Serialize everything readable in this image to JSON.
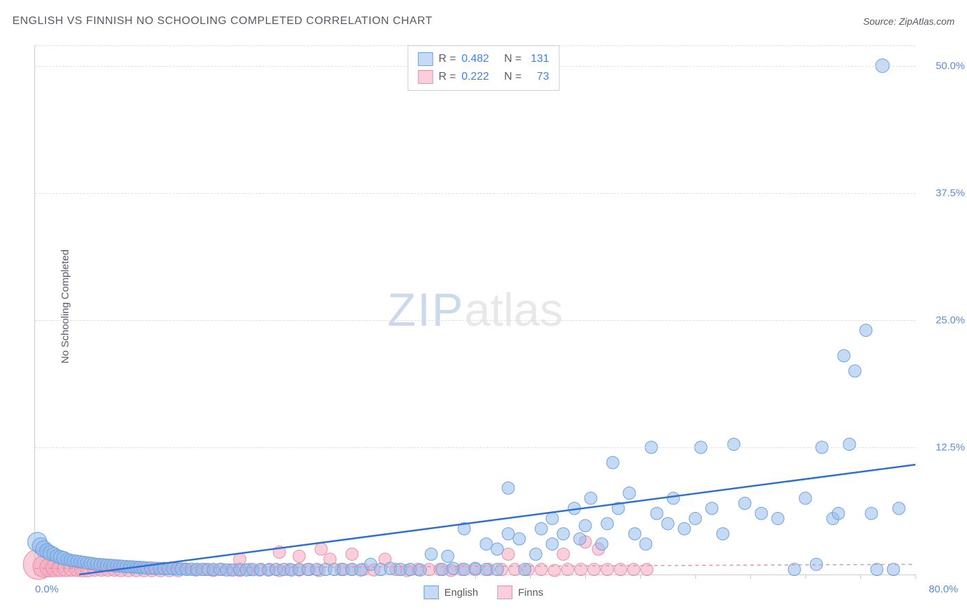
{
  "header": {
    "title": "ENGLISH VS FINNISH NO SCHOOLING COMPLETED CORRELATION CHART",
    "source_prefix": "Source: ",
    "source_name": "ZipAtlas.com"
  },
  "axes": {
    "y_label": "No Schooling Completed",
    "x_min_label": "0.0%",
    "x_max_label": "80.0%",
    "x_min": 0,
    "x_max": 80,
    "y_min": 0,
    "y_max": 52,
    "y_ticks": [
      {
        "v": 12.5,
        "label": "12.5%"
      },
      {
        "v": 25.0,
        "label": "25.0%"
      },
      {
        "v": 37.5,
        "label": "37.5%"
      },
      {
        "v": 50.0,
        "label": "50.0%"
      }
    ],
    "x_tick_step": 5,
    "grid_color": "#dcdfe4",
    "axis_color": "#c9ccd1"
  },
  "watermark": {
    "part1": "ZIP",
    "part2": "atlas"
  },
  "series": {
    "english": {
      "label": "English",
      "fill": "rgba(147,187,237,0.55)",
      "stroke": "#6ea0dd",
      "line_color": "#2f6fd0",
      "line_width": 2.5,
      "r_base": 9,
      "trend": {
        "x1": 4,
        "y1": 0,
        "x2": 80,
        "y2": 10.8
      }
    },
    "finns": {
      "label": "Finns",
      "fill": "rgba(244,168,189,0.55)",
      "stroke": "#e890a9",
      "line_color": "#e890a9",
      "line_width": 1.5,
      "line_dash": "5,5",
      "r_base": 9,
      "trend": {
        "x1": 0,
        "y1": 0.6,
        "x2": 80,
        "y2": 1.0
      }
    }
  },
  "stats_legend": {
    "rows": [
      {
        "swatch_fill": "rgba(147,187,237,0.55)",
        "swatch_stroke": "#6ea0dd",
        "r_label": "R =",
        "r_val": "0.482",
        "n_label": "N =",
        "n_val": "131"
      },
      {
        "swatch_fill": "rgba(244,168,189,0.55)",
        "swatch_stroke": "#e890a9",
        "r_label": "R =",
        "r_val": "0.222",
        "n_label": "N =",
        "n_val": "73"
      }
    ]
  },
  "points": {
    "english": [
      [
        0.2,
        3.2,
        14
      ],
      [
        0.5,
        2.8,
        12
      ],
      [
        0.8,
        2.5,
        12
      ],
      [
        1.1,
        2.3,
        11
      ],
      [
        1.4,
        2.1,
        11
      ],
      [
        1.7,
        2.0,
        10
      ],
      [
        2.0,
        1.8,
        10
      ],
      [
        2.3,
        1.7,
        10
      ],
      [
        2.6,
        1.6,
        10
      ],
      [
        2.9,
        1.5,
        9
      ],
      [
        3.2,
        1.4,
        9
      ],
      [
        3.5,
        1.35,
        9
      ],
      [
        3.8,
        1.3,
        9
      ],
      [
        4.1,
        1.25,
        9
      ],
      [
        4.4,
        1.2,
        9
      ],
      [
        4.7,
        1.15,
        9
      ],
      [
        5.0,
        1.1,
        9
      ],
      [
        5.3,
        1.05,
        9
      ],
      [
        5.6,
        1.0,
        9
      ],
      [
        5.9,
        0.98,
        9
      ],
      [
        6.2,
        0.95,
        9
      ],
      [
        6.5,
        0.92,
        9
      ],
      [
        6.8,
        0.9,
        9
      ],
      [
        7.1,
        0.88,
        9
      ],
      [
        7.4,
        0.85,
        9
      ],
      [
        7.7,
        0.83,
        9
      ],
      [
        8.0,
        0.8,
        9
      ],
      [
        8.3,
        0.78,
        9
      ],
      [
        8.6,
        0.76,
        9
      ],
      [
        8.9,
        0.74,
        9
      ],
      [
        9.2,
        0.72,
        9
      ],
      [
        9.5,
        0.7,
        9
      ],
      [
        9.8,
        0.68,
        9
      ],
      [
        10.1,
        0.66,
        9
      ],
      [
        10.5,
        0.64,
        9
      ],
      [
        10.9,
        0.62,
        9
      ],
      [
        11.3,
        0.6,
        9
      ],
      [
        11.7,
        0.6,
        9
      ],
      [
        12.1,
        0.58,
        9
      ],
      [
        12.5,
        0.58,
        9
      ],
      [
        12.9,
        0.55,
        9
      ],
      [
        13.3,
        0.55,
        9
      ],
      [
        13.7,
        0.52,
        9
      ],
      [
        14.2,
        0.52,
        9
      ],
      [
        14.7,
        0.5,
        9
      ],
      [
        15.2,
        0.5,
        9
      ],
      [
        15.7,
        0.5,
        9
      ],
      [
        16.2,
        0.5,
        9
      ],
      [
        16.8,
        0.5,
        9
      ],
      [
        17.4,
        0.45,
        9
      ],
      [
        18.0,
        0.45,
        9
      ],
      [
        18.6,
        0.5,
        9
      ],
      [
        19.2,
        0.45,
        9
      ],
      [
        19.8,
        0.48,
        9
      ],
      [
        20.5,
        0.5,
        9
      ],
      [
        21.2,
        0.45,
        9
      ],
      [
        21.9,
        0.5,
        9
      ],
      [
        22.6,
        0.5,
        9
      ],
      [
        23.3,
        0.45,
        9
      ],
      [
        24.0,
        0.5,
        9
      ],
      [
        24.8,
        0.5,
        9
      ],
      [
        25.6,
        0.5,
        9
      ],
      [
        26.4,
        0.5,
        9
      ],
      [
        27.2,
        0.5,
        9
      ],
      [
        28.0,
        0.5,
        9
      ],
      [
        28.8,
        0.5,
        9
      ],
      [
        29.6,
        0.45,
        9
      ],
      [
        30.5,
        1.0,
        9
      ],
      [
        31.4,
        0.5,
        9
      ],
      [
        32.3,
        0.6,
        9
      ],
      [
        33.2,
        0.5,
        9
      ],
      [
        34.1,
        0.5,
        9
      ],
      [
        35.0,
        0.45,
        9
      ],
      [
        36.0,
        2.0,
        9
      ],
      [
        37.0,
        0.5,
        9
      ],
      [
        37.5,
        1.8,
        9
      ],
      [
        38.0,
        0.6,
        9
      ],
      [
        39.0,
        4.5,
        9
      ],
      [
        39.0,
        0.5,
        9
      ],
      [
        40.0,
        0.6,
        9
      ],
      [
        41.0,
        3.0,
        9
      ],
      [
        41.0,
        0.5,
        9
      ],
      [
        42.0,
        2.5,
        9
      ],
      [
        42.0,
        0.5,
        9
      ],
      [
        43.0,
        8.5,
        9
      ],
      [
        43.0,
        4.0,
        9
      ],
      [
        44.0,
        3.5,
        9
      ],
      [
        44.5,
        0.5,
        9
      ],
      [
        45.5,
        2.0,
        9
      ],
      [
        46.0,
        4.5,
        9
      ],
      [
        47.0,
        3.0,
        9
      ],
      [
        47.0,
        5.5,
        9
      ],
      [
        48.0,
        4.0,
        9
      ],
      [
        49.0,
        6.5,
        9
      ],
      [
        49.5,
        3.5,
        9
      ],
      [
        50.0,
        4.8,
        9
      ],
      [
        50.5,
        7.5,
        9
      ],
      [
        51.5,
        3.0,
        9
      ],
      [
        52.0,
        5.0,
        9
      ],
      [
        52.5,
        11.0,
        9
      ],
      [
        53.0,
        6.5,
        9
      ],
      [
        54.0,
        8.0,
        9
      ],
      [
        54.5,
        4.0,
        9
      ],
      [
        55.5,
        3.0,
        9
      ],
      [
        56.0,
        12.5,
        9
      ],
      [
        56.5,
        6.0,
        9
      ],
      [
        57.5,
        5.0,
        9
      ],
      [
        58.0,
        7.5,
        9
      ],
      [
        59.0,
        4.5,
        9
      ],
      [
        60.0,
        5.5,
        9
      ],
      [
        60.5,
        12.5,
        9
      ],
      [
        61.5,
        6.5,
        9
      ],
      [
        62.5,
        4.0,
        9
      ],
      [
        63.5,
        12.8,
        9
      ],
      [
        64.5,
        7.0,
        9
      ],
      [
        66.0,
        6.0,
        9
      ],
      [
        67.5,
        5.5,
        9
      ],
      [
        69.0,
        0.5,
        9
      ],
      [
        70.0,
        7.5,
        9
      ],
      [
        71.0,
        1.0,
        9
      ],
      [
        71.5,
        12.5,
        9
      ],
      [
        72.5,
        5.5,
        9
      ],
      [
        73.0,
        6.0,
        9
      ],
      [
        73.5,
        21.5,
        9
      ],
      [
        74.0,
        12.8,
        9
      ],
      [
        74.5,
        20.0,
        9
      ],
      [
        75.5,
        24.0,
        9
      ],
      [
        76.0,
        6.0,
        9
      ],
      [
        76.5,
        0.5,
        9
      ],
      [
        77.0,
        50.0,
        10
      ],
      [
        78.0,
        0.5,
        9
      ],
      [
        78.5,
        6.5,
        9
      ]
    ],
    "finns": [
      [
        0.3,
        1.0,
        22
      ],
      [
        0.8,
        0.8,
        16
      ],
      [
        1.3,
        0.7,
        14
      ],
      [
        1.8,
        0.65,
        13
      ],
      [
        2.3,
        0.6,
        12
      ],
      [
        2.8,
        0.6,
        12
      ],
      [
        3.3,
        0.55,
        11
      ],
      [
        3.8,
        0.55,
        11
      ],
      [
        4.3,
        0.5,
        11
      ],
      [
        4.8,
        0.5,
        11
      ],
      [
        5.4,
        0.5,
        10
      ],
      [
        6.0,
        0.5,
        10
      ],
      [
        6.6,
        0.5,
        10
      ],
      [
        7.2,
        0.5,
        10
      ],
      [
        7.8,
        0.45,
        10
      ],
      [
        8.5,
        0.45,
        10
      ],
      [
        9.2,
        0.45,
        10
      ],
      [
        9.9,
        0.45,
        10
      ],
      [
        10.6,
        0.45,
        10
      ],
      [
        11.4,
        0.45,
        10
      ],
      [
        12.2,
        0.45,
        10
      ],
      [
        13.0,
        0.45,
        10
      ],
      [
        13.8,
        0.5,
        9
      ],
      [
        14.6,
        0.45,
        9
      ],
      [
        15.4,
        0.5,
        9
      ],
      [
        16.2,
        0.4,
        9
      ],
      [
        17.0,
        0.5,
        9
      ],
      [
        17.8,
        0.45,
        9
      ],
      [
        18.6,
        1.5,
        9
      ],
      [
        18.6,
        0.4,
        9
      ],
      [
        19.5,
        0.5,
        9
      ],
      [
        20.4,
        0.45,
        9
      ],
      [
        21.3,
        0.5,
        9
      ],
      [
        22.2,
        0.4,
        9
      ],
      [
        22.2,
        2.2,
        9
      ],
      [
        23.1,
        0.5,
        9
      ],
      [
        24.0,
        0.45,
        9
      ],
      [
        24.0,
        1.8,
        9
      ],
      [
        24.9,
        0.5,
        9
      ],
      [
        25.8,
        0.4,
        9
      ],
      [
        26.0,
        2.5,
        9
      ],
      [
        26.8,
        1.5,
        9
      ],
      [
        27.8,
        0.5,
        9
      ],
      [
        28.8,
        0.5,
        9
      ],
      [
        28.8,
        2.0,
        9
      ],
      [
        29.8,
        0.5,
        9
      ],
      [
        30.8,
        0.45,
        9
      ],
      [
        31.8,
        1.5,
        9
      ],
      [
        32.8,
        0.5,
        9
      ],
      [
        33.8,
        0.4,
        9
      ],
      [
        34.8,
        0.5,
        9
      ],
      [
        35.8,
        0.5,
        9
      ],
      [
        36.8,
        0.5,
        9
      ],
      [
        37.8,
        0.4,
        9
      ],
      [
        38.8,
        0.5,
        9
      ],
      [
        40.0,
        0.5,
        9
      ],
      [
        41.2,
        0.5,
        9
      ],
      [
        42.4,
        0.5,
        9
      ],
      [
        43.0,
        2.0,
        9
      ],
      [
        43.6,
        0.5,
        9
      ],
      [
        44.8,
        0.5,
        9
      ],
      [
        46.0,
        0.5,
        9
      ],
      [
        47.2,
        0.4,
        9
      ],
      [
        48.0,
        2.0,
        9
      ],
      [
        48.4,
        0.5,
        9
      ],
      [
        49.6,
        0.5,
        9
      ],
      [
        50.0,
        3.2,
        9
      ],
      [
        50.8,
        0.5,
        9
      ],
      [
        51.2,
        2.5,
        9
      ],
      [
        52.0,
        0.5,
        9
      ],
      [
        53.2,
        0.5,
        9
      ],
      [
        54.4,
        0.5,
        9
      ],
      [
        55.6,
        0.5,
        9
      ]
    ]
  }
}
